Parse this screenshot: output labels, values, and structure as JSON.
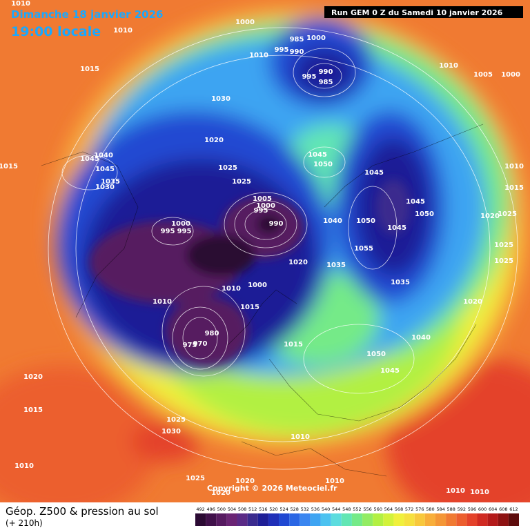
{
  "header": {
    "date": "Dimanche 18 janvier 2026",
    "time": "19:00 locale",
    "run": "Run GEM 0 Z du Samedi 10 janvier 2026"
  },
  "map": {
    "pressure_labels": [
      1010,
      1010,
      1000,
      1015,
      1000,
      985,
      990,
      995,
      1010,
      990,
      985,
      995,
      1010,
      1005,
      1000,
      1030,
      1020,
      1025,
      1045,
      1050,
      1025,
      1005,
      1000,
      995,
      990,
      1000,
      995,
      995,
      1010,
      1010,
      1000,
      1015,
      1045,
      1045,
      1050,
      1050,
      1045,
      1055,
      1040,
      1020,
      1035,
      1035,
      1020,
      1040,
      1050,
      1045,
      1015,
      980,
      975,
      970,
      1015,
      1045,
      1040,
      1045,
      1035,
      1030,
      1010,
      1015,
      1025,
      1020,
      1025,
      1025,
      1020,
      1015,
      1025,
      1030,
      1010,
      1025,
      1010,
      1010,
      1020,
      1020,
      1010,
      1010
    ],
    "copyright": "Copyright © 2026 Meteociel.fr"
  },
  "footer": {
    "title": "Géop. Z500 & pression au sol",
    "lead": "(+ 210h)"
  },
  "legend": {
    "levels": [
      492,
      496,
      500,
      504,
      508,
      512,
      516,
      520,
      524,
      528,
      532,
      536,
      540,
      544,
      548,
      552,
      556,
      560,
      564,
      568,
      572,
      576,
      580,
      584,
      588,
      592,
      596,
      600,
      604,
      608,
      612
    ],
    "colors": [
      "#2b0a33",
      "#40104a",
      "#561a60",
      "#6a2474",
      "#5a2a86",
      "#3a2a8e",
      "#1e1e96",
      "#1f2fb8",
      "#2048d2",
      "#2a66e4",
      "#3a86f0",
      "#3ea4f2",
      "#4cc2f0",
      "#5cdcde",
      "#62e6b4",
      "#74ea88",
      "#92ec62",
      "#b2f042",
      "#d2f23a",
      "#f0f03c",
      "#f6e03e",
      "#f8c83c",
      "#f8ae3a",
      "#f49636",
      "#f07a32",
      "#ec5e2e",
      "#e4422a",
      "#d02a22",
      "#b41a1a",
      "#8e1212",
      "#5e0c0c"
    ]
  }
}
